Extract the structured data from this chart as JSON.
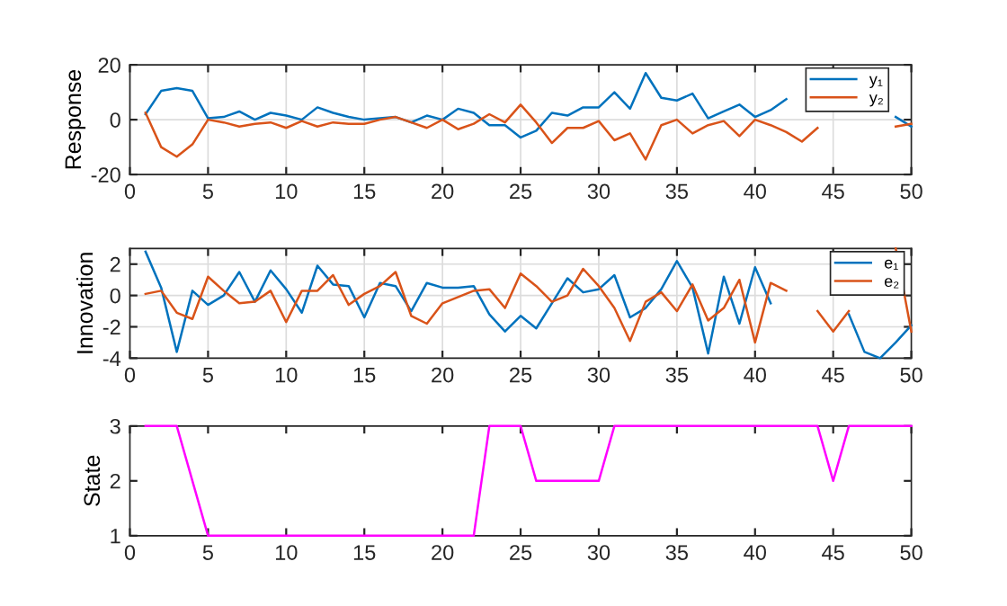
{
  "chart_data": [
    {
      "type": "line",
      "ylabel": "Response",
      "x": [
        1,
        2,
        3,
        4,
        5,
        6,
        7,
        8,
        9,
        10,
        11,
        12,
        13,
        14,
        15,
        16,
        17,
        18,
        19,
        20,
        21,
        22,
        23,
        24,
        25,
        26,
        27,
        28,
        29,
        30,
        31,
        32,
        33,
        34,
        35,
        36,
        37,
        38,
        39,
        40,
        41,
        42,
        43,
        44,
        45,
        46,
        47,
        48,
        49,
        50
      ],
      "xlim": [
        0,
        50
      ],
      "xticks": [
        0,
        5,
        10,
        15,
        20,
        25,
        30,
        35,
        40,
        45,
        50
      ],
      "ylim": [
        -20,
        20
      ],
      "yticks": [
        -20,
        0,
        20
      ],
      "grid": true,
      "legend": "top right",
      "marker": "none",
      "line_style": "solid",
      "series": [
        {
          "name": "y₁",
          "color": "#0072bd",
          "values": [
            2,
            10.5,
            11.5,
            10.5,
            0.5,
            1,
            3,
            0,
            2.5,
            1.5,
            0,
            4.5,
            2.5,
            1,
            0,
            0.5,
            1,
            -1,
            1.5,
            0,
            4,
            2.5,
            -2,
            -2,
            -6.5,
            -4,
            2.5,
            1.5,
            4.5,
            4.5,
            10,
            4,
            17,
            8,
            7,
            9.5,
            0.5,
            3,
            5.5,
            1,
            3.5,
            7.5,
            null,
            null,
            null,
            null,
            null,
            null,
            1,
            -2.5
          ]
        },
        {
          "name": "y₂",
          "color": "#d95319",
          "values": [
            2.5,
            -10,
            -13.5,
            -9,
            0,
            -1,
            -2.5,
            -1.5,
            -1,
            -3,
            -0.5,
            -2.5,
            -1,
            -1.5,
            -1.5,
            0,
            1,
            -1,
            -3,
            0,
            -3.5,
            -1.5,
            2,
            -1,
            5.5,
            -1,
            -8.5,
            -3,
            -3,
            -0.5,
            -7.5,
            -5,
            -14.5,
            -2,
            0,
            -5,
            -2,
            -0.5,
            -6,
            0,
            -2,
            -4.5,
            -8,
            -3,
            null,
            null,
            null,
            null,
            -2.5,
            -1.5
          ]
        }
      ]
    },
    {
      "type": "line",
      "ylabel": "Innovation",
      "x": [
        1,
        2,
        3,
        4,
        5,
        6,
        7,
        8,
        9,
        10,
        11,
        12,
        13,
        14,
        15,
        16,
        17,
        18,
        19,
        20,
        21,
        22,
        23,
        24,
        25,
        26,
        27,
        28,
        29,
        30,
        31,
        32,
        33,
        34,
        35,
        36,
        37,
        38,
        39,
        40,
        41,
        42,
        43,
        44,
        45,
        46,
        47,
        48,
        49,
        50
      ],
      "xlim": [
        0,
        50
      ],
      "xticks": [
        0,
        5,
        10,
        15,
        20,
        25,
        30,
        35,
        40,
        45,
        50
      ],
      "ylim": [
        -4,
        3
      ],
      "yticks": [
        -4,
        -2,
        0,
        2
      ],
      "grid": true,
      "legend": "top right",
      "marker": "none",
      "line_style": "solid",
      "series": [
        {
          "name": "e₁",
          "color": "#0072bd",
          "values": [
            2.8,
            0.5,
            -3.6,
            0.3,
            -0.6,
            0,
            1.5,
            -0.4,
            1.6,
            0.4,
            -1.1,
            1.9,
            0.7,
            0.6,
            -1.4,
            0.8,
            0.6,
            -1,
            0.8,
            0.5,
            0.5,
            0.6,
            -1.2,
            -2.3,
            -1.3,
            -2.1,
            -0.5,
            1.1,
            0.2,
            0.4,
            1.3,
            -1.4,
            -0.8,
            0.4,
            2.2,
            0.5,
            -3.7,
            1.2,
            -1.8,
            1.8,
            -0.5,
            null,
            null,
            null,
            null,
            -1.2,
            -3.6,
            -4,
            -3,
            -1.9
          ]
        },
        {
          "name": "e₂",
          "color": "#d95319",
          "values": [
            0.1,
            0.3,
            -1.1,
            -1.5,
            1.2,
            0.3,
            -0.5,
            -0.4,
            0.3,
            -1.7,
            0.3,
            0.3,
            1.3,
            -0.6,
            0.1,
            0.6,
            1.5,
            -1.3,
            -1.8,
            -0.5,
            -0.1,
            0.3,
            0.4,
            -0.8,
            1.4,
            0.6,
            -0.4,
            0,
            1.7,
            0.6,
            -0.8,
            -2.9,
            -0.4,
            0.2,
            -1,
            0.7,
            -1.6,
            -0.8,
            1,
            -3,
            0.8,
            0.3,
            null,
            -1,
            -2.3,
            -1,
            null,
            null,
            3,
            -2.3
          ]
        }
      ]
    },
    {
      "type": "line",
      "ylabel": "State",
      "x": [
        1,
        2,
        3,
        4,
        5,
        6,
        7,
        8,
        9,
        10,
        11,
        12,
        13,
        14,
        15,
        16,
        17,
        18,
        19,
        20,
        21,
        22,
        23,
        24,
        25,
        26,
        27,
        28,
        29,
        30,
        31,
        32,
        33,
        34,
        35,
        36,
        37,
        38,
        39,
        40,
        41,
        42,
        43,
        44,
        45,
        46,
        47,
        48,
        49,
        50
      ],
      "xlim": [
        0,
        50
      ],
      "xticks": [
        0,
        5,
        10,
        15,
        20,
        25,
        30,
        35,
        40,
        45,
        50
      ],
      "ylim": [
        1,
        3
      ],
      "yticks": [
        1,
        2,
        3
      ],
      "marker": "none",
      "line_style": "solid",
      "series": [
        {
          "color": "#ff00ff",
          "values": [
            3,
            3,
            3,
            2,
            1,
            1,
            1,
            1,
            1,
            1,
            1,
            1,
            1,
            1,
            1,
            1,
            1,
            1,
            1,
            1,
            1,
            1,
            3,
            3,
            3,
            2,
            2,
            2,
            2,
            2,
            3,
            3,
            3,
            3,
            3,
            3,
            3,
            3,
            3,
            3,
            3,
            3,
            3,
            3,
            2,
            3,
            3,
            3,
            3,
            3
          ]
        }
      ]
    }
  ]
}
